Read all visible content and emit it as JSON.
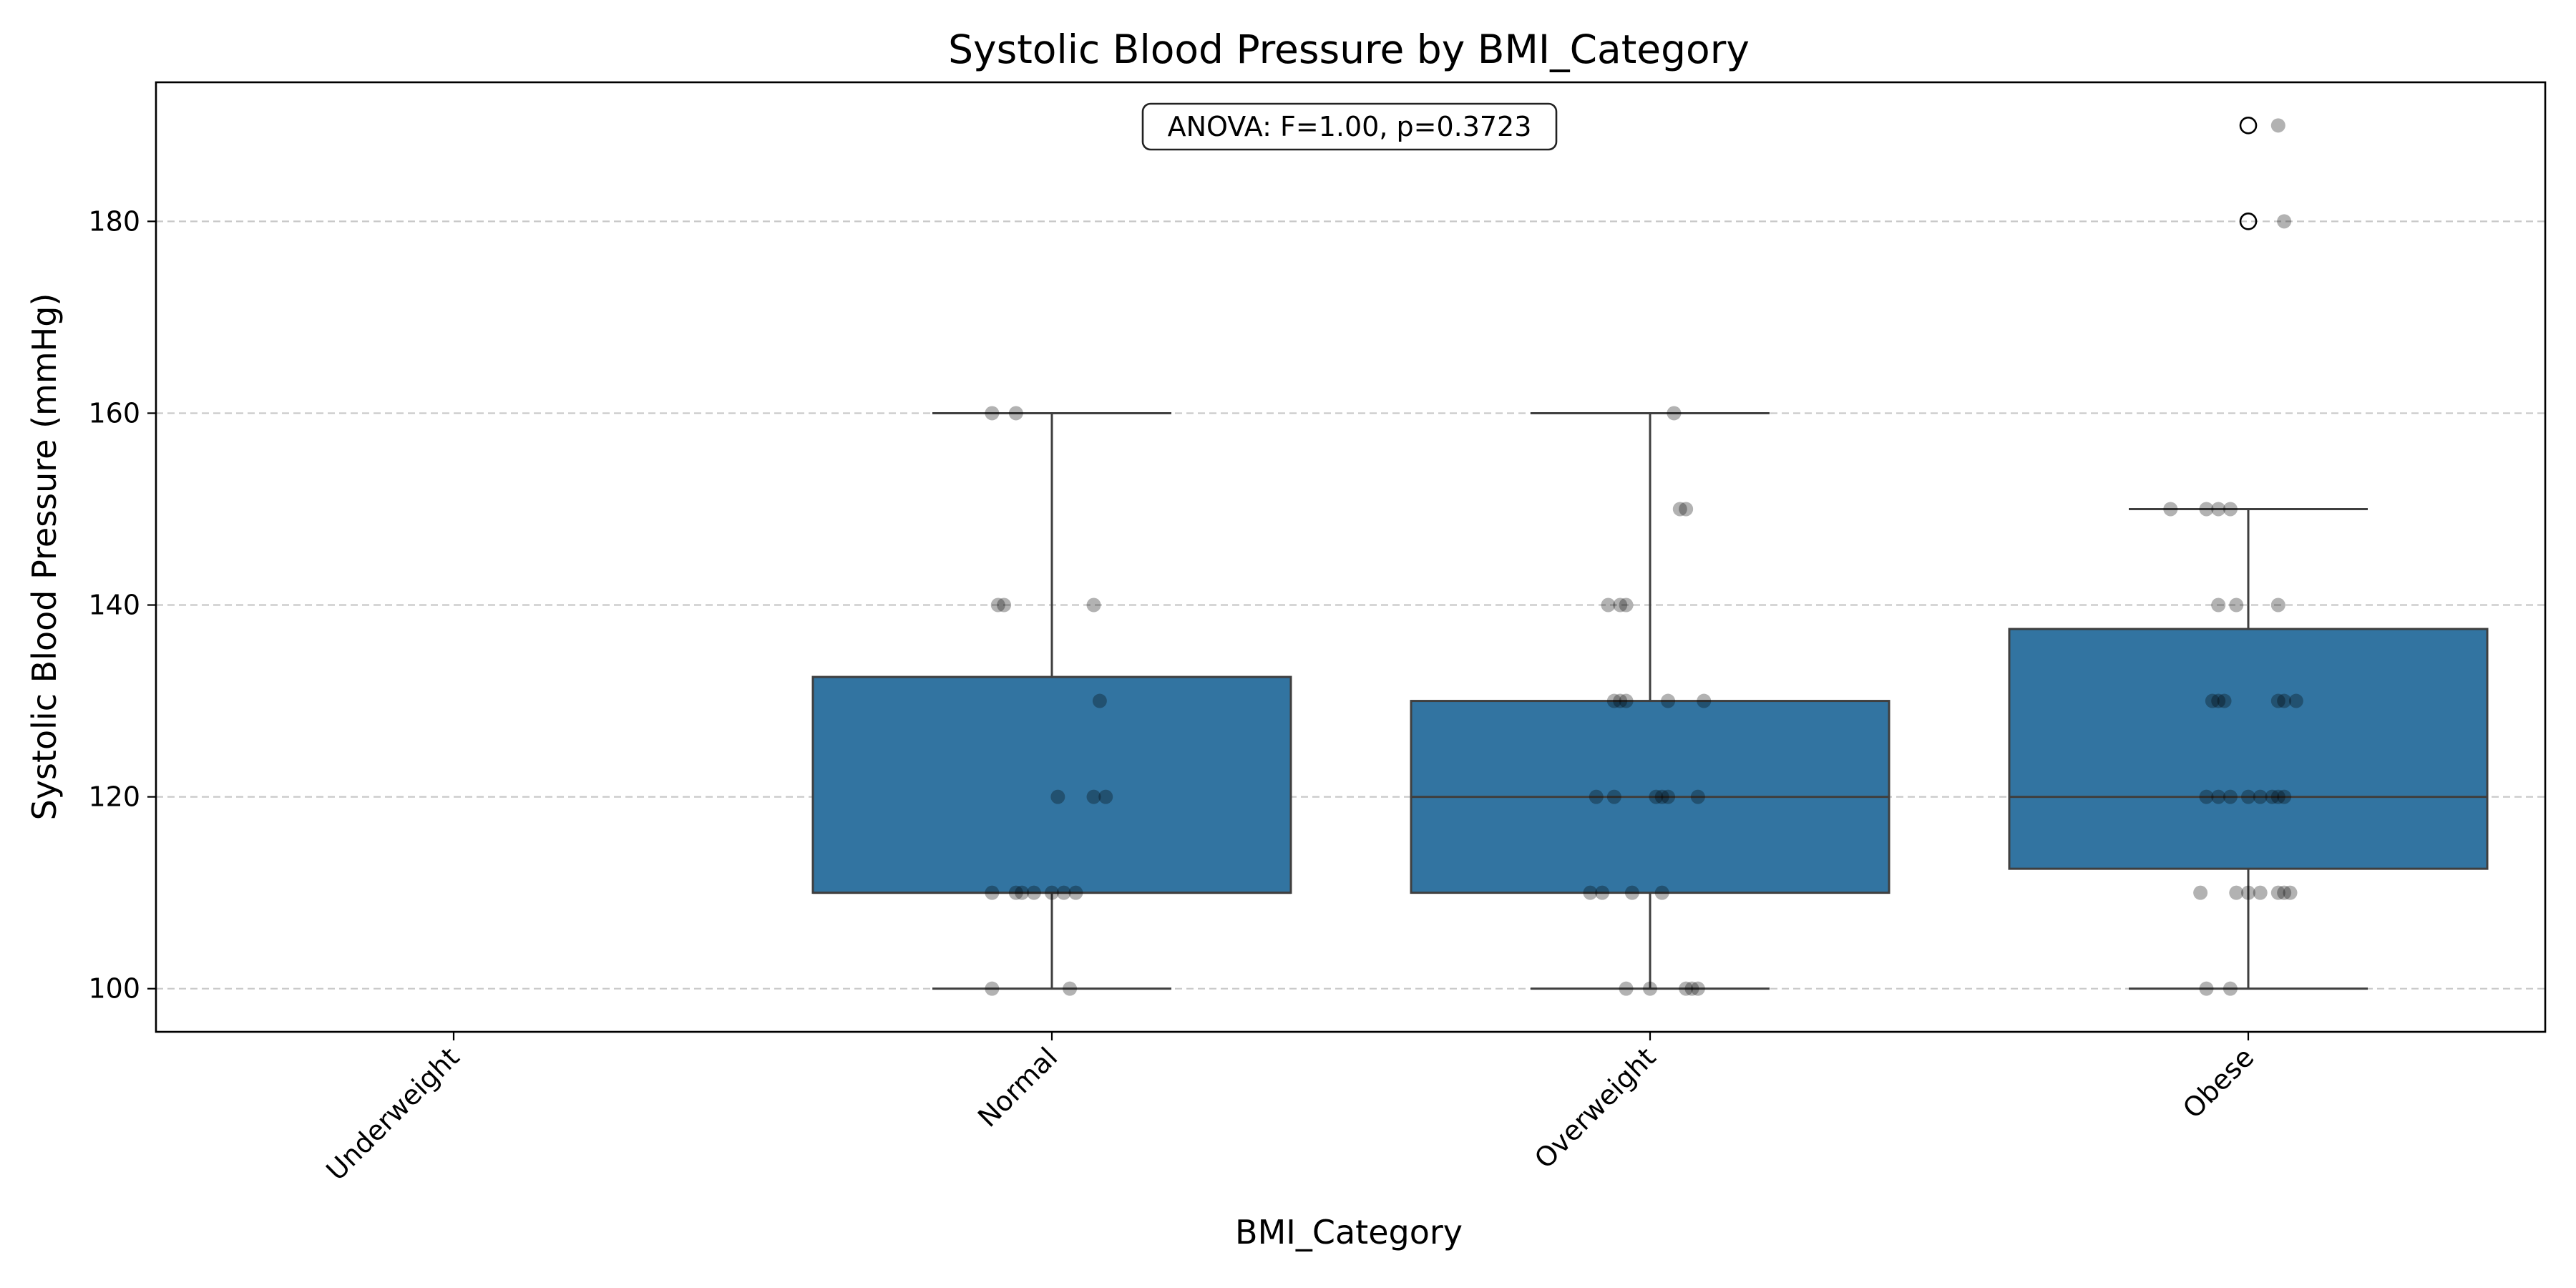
{
  "chart_data": {
    "type": "box",
    "title": "Systolic Blood Pressure by BMI_Category",
    "xlabel": "BMI_Category",
    "ylabel": "Systolic Blood Pressure (mmHg)",
    "ylim": [
      95.5,
      194.5
    ],
    "yticks": [
      100,
      120,
      140,
      160,
      180
    ],
    "grid": "horizontal dashed",
    "annotation": "ANOVA: F=1.00, p=0.3723",
    "colors": {
      "box": "#3274a1",
      "edge": "#3f3f3f",
      "points": "#000000",
      "grid": "#c8c8c8"
    },
    "categories": [
      "Underweight",
      "Normal",
      "Overweight",
      "Obese"
    ],
    "boxes": [
      null,
      {
        "q1": 110,
        "median": 110,
        "q3": 132.5,
        "whisker_low": 100,
        "whisker_high": 160,
        "outliers": []
      },
      {
        "q1": 110,
        "median": 120,
        "q3": 130,
        "whisker_low": 100,
        "whisker_high": 160,
        "outliers": []
      },
      {
        "q1": 112.5,
        "median": 120,
        "q3": 137.5,
        "whisker_low": 100,
        "whisker_high": 150,
        "outliers": [
          180,
          190
        ]
      }
    ],
    "points": [
      [],
      [
        {
          "x": -0.1,
          "y": 160
        },
        {
          "x": -0.06,
          "y": 160
        },
        {
          "x": -0.09,
          "y": 140
        },
        {
          "x": -0.08,
          "y": 140
        },
        {
          "x": 0.07,
          "y": 140
        },
        {
          "x": 0.08,
          "y": 130
        },
        {
          "x": 0.01,
          "y": 120
        },
        {
          "x": 0.07,
          "y": 120
        },
        {
          "x": 0.09,
          "y": 120
        },
        {
          "x": -0.1,
          "y": 110
        },
        {
          "x": -0.06,
          "y": 110
        },
        {
          "x": -0.05,
          "y": 110
        },
        {
          "x": -0.03,
          "y": 110
        },
        {
          "x": 0.0,
          "y": 110
        },
        {
          "x": 0.02,
          "y": 110
        },
        {
          "x": 0.04,
          "y": 110
        },
        {
          "x": -0.1,
          "y": 100
        },
        {
          "x": 0.03,
          "y": 100
        }
      ],
      [
        {
          "x": 0.04,
          "y": 160
        },
        {
          "x": 0.05,
          "y": 150
        },
        {
          "x": 0.06,
          "y": 150
        },
        {
          "x": -0.07,
          "y": 140
        },
        {
          "x": -0.05,
          "y": 140
        },
        {
          "x": -0.04,
          "y": 140
        },
        {
          "x": -0.06,
          "y": 130
        },
        {
          "x": -0.05,
          "y": 130
        },
        {
          "x": -0.04,
          "y": 130
        },
        {
          "x": 0.03,
          "y": 130
        },
        {
          "x": 0.09,
          "y": 130
        },
        {
          "x": -0.09,
          "y": 120
        },
        {
          "x": -0.06,
          "y": 120
        },
        {
          "x": 0.01,
          "y": 120
        },
        {
          "x": 0.02,
          "y": 120
        },
        {
          "x": 0.03,
          "y": 120
        },
        {
          "x": 0.08,
          "y": 120
        },
        {
          "x": -0.1,
          "y": 110
        },
        {
          "x": -0.08,
          "y": 110
        },
        {
          "x": -0.03,
          "y": 110
        },
        {
          "x": 0.02,
          "y": 110
        },
        {
          "x": -0.04,
          "y": 100
        },
        {
          "x": -0.0,
          "y": 100
        },
        {
          "x": 0.06,
          "y": 100
        },
        {
          "x": 0.07,
          "y": 100
        },
        {
          "x": 0.08,
          "y": 100
        }
      ],
      [
        {
          "x": 0.05,
          "y": 190
        },
        {
          "x": 0.06,
          "y": 180
        },
        {
          "x": -0.13,
          "y": 150
        },
        {
          "x": -0.07,
          "y": 150
        },
        {
          "x": -0.05,
          "y": 150
        },
        {
          "x": -0.03,
          "y": 150
        },
        {
          "x": -0.05,
          "y": 140
        },
        {
          "x": -0.02,
          "y": 140
        },
        {
          "x": 0.05,
          "y": 140
        },
        {
          "x": -0.06,
          "y": 130
        },
        {
          "x": -0.05,
          "y": 130
        },
        {
          "x": -0.04,
          "y": 130
        },
        {
          "x": 0.05,
          "y": 130
        },
        {
          "x": 0.06,
          "y": 130
        },
        {
          "x": 0.08,
          "y": 130
        },
        {
          "x": -0.07,
          "y": 120
        },
        {
          "x": -0.05,
          "y": 120
        },
        {
          "x": -0.03,
          "y": 120
        },
        {
          "x": 0.0,
          "y": 120
        },
        {
          "x": 0.02,
          "y": 120
        },
        {
          "x": 0.04,
          "y": 120
        },
        {
          "x": 0.05,
          "y": 120
        },
        {
          "x": 0.06,
          "y": 120
        },
        {
          "x": -0.08,
          "y": 110
        },
        {
          "x": -0.02,
          "y": 110
        },
        {
          "x": -0.0,
          "y": 110
        },
        {
          "x": 0.02,
          "y": 110
        },
        {
          "x": 0.05,
          "y": 110
        },
        {
          "x": 0.06,
          "y": 110
        },
        {
          "x": 0.07,
          "y": 110
        },
        {
          "x": -0.07,
          "y": 100
        },
        {
          "x": -0.03,
          "y": 100
        }
      ]
    ]
  }
}
